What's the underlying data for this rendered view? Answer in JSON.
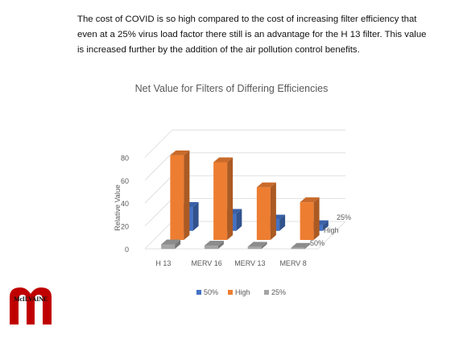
{
  "slide": {
    "paragraph": "The cost of COVID is so high compared to the cost of increasing filter efficiency that even at a 25% virus load factor there still is an advantage for the H 13 filter. This value is increased further by the addition of the air pollution control benefits.",
    "logo_text": "McILVAINE"
  },
  "chart_data": {
    "type": "bar",
    "subtype": "3d-clustered",
    "title": "Net Value for Filters of Differing Efficiencies",
    "xlabel": "",
    "ylabel": "Relative Value",
    "ylim": [
      0,
      80
    ],
    "yticks": [
      0,
      20,
      40,
      60,
      80
    ],
    "categories": [
      "H 13",
      "MERV 16",
      "MERV 13",
      "MERV 8"
    ],
    "depth_labels": [
      "25%",
      "High",
      "50%"
    ],
    "series": [
      {
        "name": "50%",
        "color": "#4472C4",
        "values": [
          21,
          15,
          10,
          5
        ]
      },
      {
        "name": "High",
        "color": "#ED7D31",
        "values": [
          74,
          68,
          46,
          33
        ]
      },
      {
        "name": "25%",
        "color": "#A5A5A5",
        "values": [
          4,
          3,
          2,
          1
        ]
      }
    ],
    "legend": {
      "position": "bottom",
      "entries": [
        "50%",
        "High",
        "25%"
      ]
    },
    "grid": true
  }
}
